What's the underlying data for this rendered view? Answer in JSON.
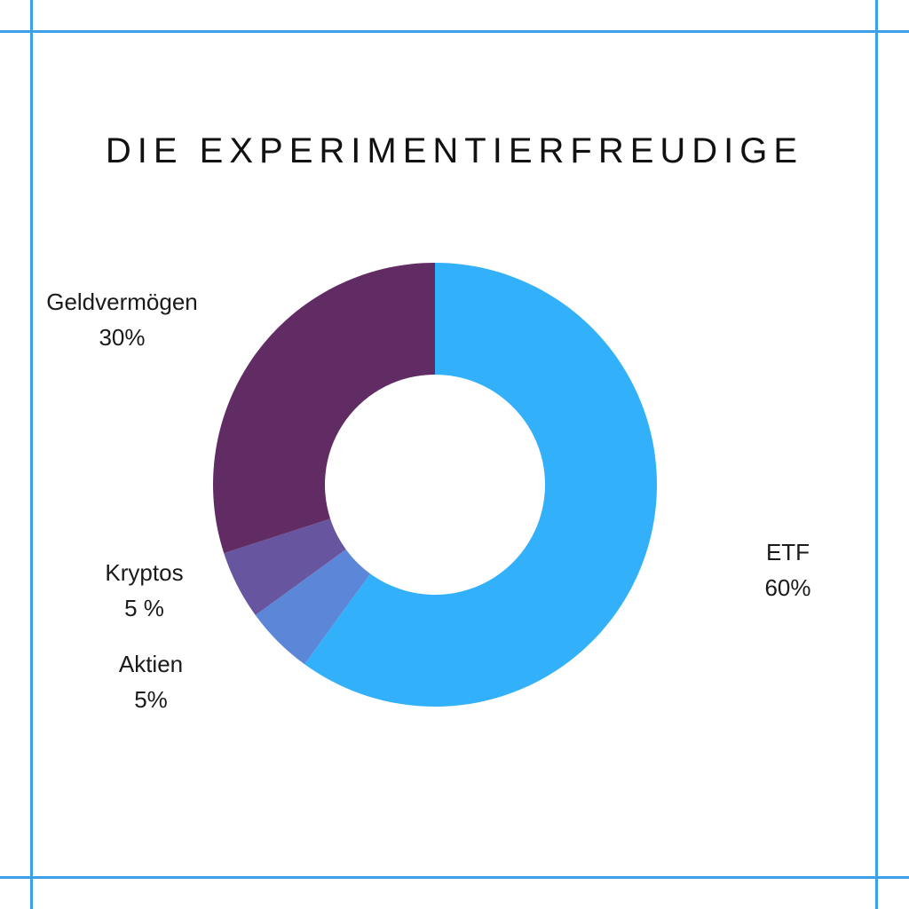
{
  "chart_data": {
    "type": "pie",
    "title": "DIE EXPERIMENTIERFREUDIGE",
    "donut": true,
    "slices": [
      {
        "name": "ETF",
        "value": 60,
        "label": "60%",
        "color": "#32b0fa"
      },
      {
        "name": "Aktien",
        "value": 5,
        "label": "5%",
        "color": "#5c87d8"
      },
      {
        "name": "Kryptos",
        "value": 5,
        "label": "5 %",
        "color": "#68559f"
      },
      {
        "name": "Geldvermögen",
        "value": 30,
        "label": "30%",
        "color": "#612c63"
      }
    ]
  },
  "colors": {
    "frame": "#3aa0e8",
    "background": "#ffffff"
  }
}
